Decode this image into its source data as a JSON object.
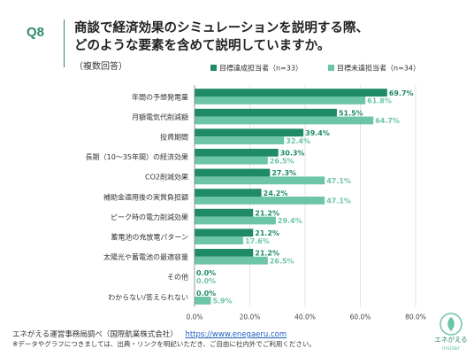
{
  "header": {
    "question_label": "Q8",
    "title_line1": "商談で経済効果のシミュレーションを説明する際、",
    "title_line2": "どのような要素を含めて説明していますか。",
    "subtitle": "（複数回答）"
  },
  "colors": {
    "accent": "#2e8b6e",
    "series_achieved": "#1e8a68",
    "series_not_achieved": "#6cc5a7",
    "grid": "#d0d0d0"
  },
  "chart_data": {
    "type": "bar",
    "orientation": "horizontal",
    "categories": [
      "年間の予想発電量",
      "月額電気代削減額",
      "投資期間",
      "長期（10～35年間）の経済効果",
      "CO2削減効果",
      "補助金適用後の実質負担額",
      "ピーク時の電力削減効果",
      "蓄電池の充放電パターン",
      "太陽光や蓄電池の最適容量",
      "その他",
      "わからない/答えられない"
    ],
    "series": [
      {
        "name": "目標達成担当者（n=33）",
        "values": [
          69.7,
          51.5,
          39.4,
          30.3,
          27.3,
          24.2,
          21.2,
          21.2,
          21.2,
          0.0,
          0.0
        ],
        "value_labels": [
          "69.7%",
          "51.5%",
          "39.4%",
          "30.3%",
          "27.3%",
          "24.2%",
          "21.2%",
          "21.2%",
          "21.2%",
          "0.0%",
          "0.0%"
        ]
      },
      {
        "name": "目標未達担当者（n=34）",
        "values": [
          61.8,
          64.7,
          32.4,
          26.5,
          47.1,
          47.1,
          29.4,
          17.6,
          26.5,
          0.0,
          5.9
        ],
        "value_labels": [
          "61.8%",
          "64.7%",
          "32.4%",
          "26.5%",
          "47.1%",
          "47.1%",
          "29.4%",
          "17.6%",
          "26.5%",
          "0.0%",
          "5.9%"
        ]
      }
    ],
    "xlim": [
      0,
      80
    ],
    "xticks": [
      "0.0%",
      "20.0%",
      "40.0%",
      "60.0%",
      "80.0%"
    ],
    "legend_position": "top-right",
    "grid": true
  },
  "footer": {
    "source_text": "エネがえる運営事務局調べ（国際航業株式会社）",
    "url": "https://www.enegaeru.com",
    "note": "※データやグラフにつきましては、出典・リンクを明記いただき、ご自由に社内外でご利用ください。"
  },
  "logo": {
    "name": "エネがえる",
    "sub": "Insider",
    "icon": "enegaeru-leaf-logo"
  }
}
